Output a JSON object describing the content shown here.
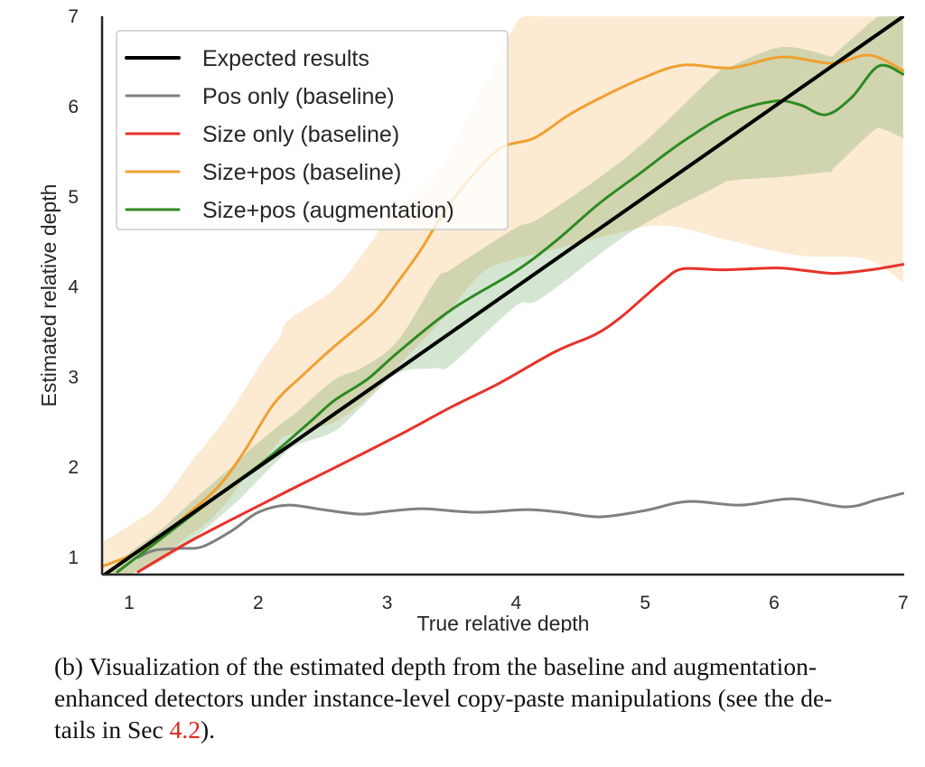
{
  "chart_data": {
    "type": "line",
    "title": "",
    "xlabel": "True relative depth",
    "ylabel": "Estimated relative depth",
    "xlim": [
      0.79,
      7.0
    ],
    "ylim": [
      0.81,
      7.0
    ],
    "xticks": [
      1,
      2,
      3,
      4,
      5,
      6,
      7
    ],
    "yticks": [
      1,
      2,
      3,
      4,
      5,
      6,
      7
    ],
    "grid": false,
    "legend_position": "top-left",
    "series": [
      {
        "name": "Expected results",
        "color": "#000000",
        "x": [
          0.79,
          7.0
        ],
        "y": [
          0.79,
          7.0
        ]
      },
      {
        "name": "Pos only (baseline)",
        "color": "#808080",
        "x": [
          1.07,
          1.2,
          1.4,
          1.57,
          1.8,
          2.0,
          2.23,
          2.5,
          2.79,
          3.0,
          3.28,
          3.68,
          4.08,
          4.35,
          4.65,
          5.0,
          5.33,
          5.74,
          6.14,
          6.55,
          6.8,
          7.0
        ],
        "y": [
          1.0,
          1.08,
          1.1,
          1.12,
          1.3,
          1.5,
          1.58,
          1.53,
          1.48,
          1.51,
          1.54,
          1.5,
          1.53,
          1.5,
          1.45,
          1.52,
          1.62,
          1.58,
          1.65,
          1.56,
          1.64,
          1.71
        ]
      },
      {
        "name": "Size only (baseline)",
        "color": "#e8322a",
        "x": [
          1.07,
          1.5,
          2.18,
          2.6,
          3.11,
          3.5,
          3.88,
          4.3,
          4.61,
          4.8,
          5.01,
          5.15,
          5.29,
          5.6,
          6.02,
          6.25,
          6.47,
          6.75,
          7.0
        ],
        "y": [
          0.84,
          1.2,
          1.7,
          2.0,
          2.37,
          2.67,
          2.94,
          3.28,
          3.47,
          3.65,
          3.91,
          4.08,
          4.2,
          4.19,
          4.21,
          4.18,
          4.15,
          4.19,
          4.25
        ]
      },
      {
        "name": "Size+pos (baseline)",
        "color": "#f0a030",
        "x": [
          0.79,
          1.12,
          1.47,
          1.7,
          1.89,
          2.12,
          2.36,
          2.59,
          2.9,
          3.08,
          3.26,
          3.5,
          3.85,
          4.14,
          4.4,
          4.63,
          4.97,
          5.29,
          5.67,
          6.06,
          6.45,
          6.74,
          7.0
        ],
        "y": [
          0.9,
          1.1,
          1.5,
          1.8,
          2.17,
          2.7,
          3.04,
          3.34,
          3.72,
          4.05,
          4.41,
          4.95,
          5.51,
          5.65,
          5.9,
          6.08,
          6.31,
          6.46,
          6.43,
          6.55,
          6.48,
          6.57,
          6.4
        ]
      },
      {
        "name": "Size+pos (augmentation)",
        "color": "#2e8a22",
        "x": [
          0.91,
          1.24,
          1.7,
          2.05,
          2.4,
          2.59,
          2.85,
          3.08,
          3.5,
          3.99,
          4.3,
          4.63,
          4.95,
          5.29,
          5.65,
          6.0,
          6.2,
          6.4,
          6.6,
          6.81,
          7.0
        ],
        "y": [
          0.84,
          1.2,
          1.7,
          2.07,
          2.5,
          2.74,
          2.98,
          3.27,
          3.75,
          4.17,
          4.5,
          4.91,
          5.25,
          5.61,
          5.92,
          6.06,
          6.02,
          5.91,
          6.1,
          6.45,
          6.36
        ]
      }
    ],
    "bands": [
      {
        "name": "Size+pos (baseline) spread",
        "color": "#f0a030",
        "x": [
          0.79,
          1.0,
          1.24,
          1.47,
          1.59,
          1.75,
          1.89,
          2.03,
          2.17,
          2.24,
          2.59,
          2.87,
          3.0,
          3.41,
          3.73,
          3.97,
          4.06,
          4.2,
          4.74,
          5.15,
          5.67,
          6.19,
          6.71,
          7.0
        ],
        "upper": [
          1.17,
          1.35,
          1.6,
          2.04,
          2.25,
          2.54,
          2.85,
          3.17,
          3.45,
          3.64,
          3.98,
          4.48,
          4.75,
          5.31,
          6.15,
          6.85,
          7.0,
          7.0,
          7.0,
          7.0,
          7.0,
          7.0,
          7.0,
          7.0
        ],
        "lower": [
          0.81,
          0.81,
          1.0,
          1.25,
          1.37,
          1.6,
          1.87,
          2.05,
          2.3,
          2.36,
          2.5,
          2.8,
          3.0,
          3.61,
          4.15,
          4.3,
          4.34,
          4.38,
          4.58,
          4.68,
          4.51,
          4.35,
          4.31,
          4.05
        ]
      },
      {
        "name": "Size+pos (augmentation) spread",
        "color": "#3c8c32",
        "x": [
          0.85,
          1.0,
          1.24,
          1.47,
          1.82,
          1.94,
          2.17,
          2.29,
          2.59,
          2.8,
          3.08,
          3.38,
          3.5,
          3.99,
          4.2,
          4.89,
          5.54,
          5.67,
          6.06,
          6.43,
          6.45,
          6.76,
          6.84,
          7.0
        ],
        "upper": [
          0.85,
          1.05,
          1.3,
          1.6,
          2.04,
          2.2,
          2.47,
          2.6,
          2.97,
          3.1,
          3.4,
          4.08,
          4.2,
          4.65,
          4.78,
          5.48,
          6.35,
          6.45,
          6.66,
          6.56,
          6.56,
          6.95,
          7.0,
          7.0
        ],
        "lower": [
          0.81,
          0.81,
          0.95,
          1.17,
          1.6,
          1.77,
          2.1,
          2.24,
          2.4,
          2.67,
          3.04,
          3.1,
          3.14,
          3.78,
          3.88,
          4.61,
          5.1,
          5.18,
          5.22,
          5.28,
          5.3,
          5.72,
          5.75,
          5.65
        ]
      }
    ]
  },
  "caption": {
    "line1": "(b) Visualization of the estimated depth from the baseline and augmentation-",
    "line2": "enhanced detectors under instance-level copy-paste manipulations (see the de-",
    "line3_prefix": "tails in Sec ",
    "line3_ref": "4.2",
    "line3_suffix": ")."
  }
}
